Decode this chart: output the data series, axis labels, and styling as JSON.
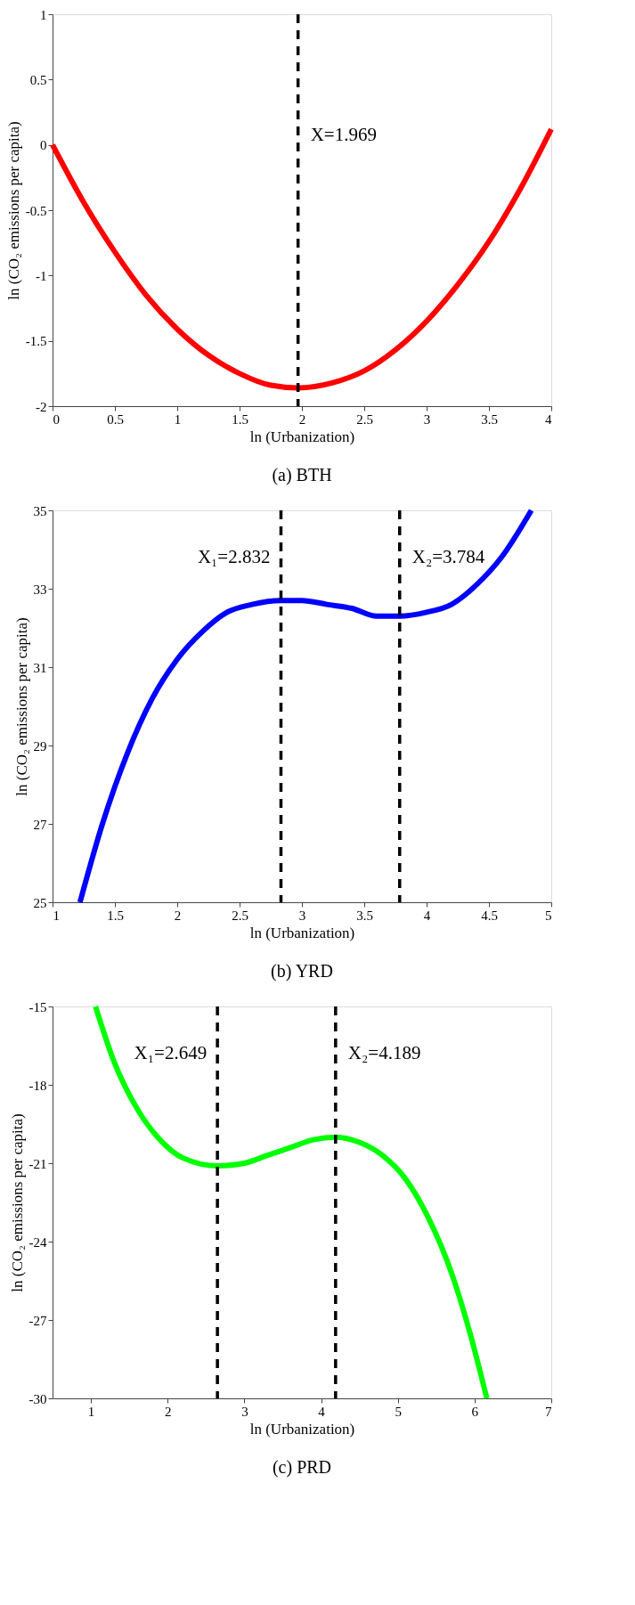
{
  "chart_data": [
    {
      "type": "line",
      "xlabel": "ln (Urbanization)",
      "ylabel": "ln (CO₂ emissions per capita)",
      "x": [
        0,
        0.25,
        0.5,
        0.75,
        1.0,
        1.25,
        1.5,
        1.75,
        1.969,
        2.25,
        2.5,
        2.75,
        3.0,
        3.25,
        3.5,
        3.75,
        4.0
      ],
      "series": [
        {
          "color": "#ff0000",
          "values": [
            0.0,
            -0.44,
            -0.82,
            -1.15,
            -1.41,
            -1.61,
            -1.75,
            -1.84,
            -1.86,
            -1.82,
            -1.73,
            -1.57,
            -1.35,
            -1.07,
            -0.74,
            -0.34,
            0.12
          ]
        }
      ],
      "xlim": [
        0,
        4
      ],
      "xticks": [
        0,
        0.5,
        1,
        1.5,
        2,
        2.5,
        3,
        3.5,
        4
      ],
      "ylim": [
        -2,
        1
      ],
      "yticks": [
        -2,
        -1.5,
        -1,
        -0.5,
        0,
        0.5,
        1
      ],
      "ref_lines": [
        {
          "axis": "x",
          "value": 1.969,
          "label": "X=1.969",
          "color": "#000000",
          "line_style": "dashed"
        }
      ],
      "annotations": [
        "(a) BTH"
      ],
      "grid": false,
      "legend": false,
      "line_style": "solid",
      "marker": "none"
    },
    {
      "type": "line",
      "xlabel": "ln (Urbanization)",
      "ylabel": "ln (CO₂ emissions per capita)",
      "x": [
        1.22,
        1.4,
        1.6,
        1.8,
        2.0,
        2.2,
        2.4,
        2.6,
        2.832,
        3.0,
        3.2,
        3.4,
        3.6,
        3.784,
        4.0,
        4.2,
        4.4,
        4.6,
        4.84
      ],
      "series": [
        {
          "color": "#0000ff",
          "values": [
            25.0,
            27.0,
            28.8,
            30.2,
            31.2,
            31.9,
            32.4,
            32.6,
            32.7,
            32.7,
            32.6,
            32.5,
            32.3,
            32.3,
            32.4,
            32.6,
            33.1,
            33.8,
            35.0
          ]
        }
      ],
      "xlim": [
        1,
        5
      ],
      "xticks": [
        1,
        1.5,
        2,
        2.5,
        3,
        3.5,
        4,
        4.5,
        5
      ],
      "ylim": [
        25,
        35
      ],
      "yticks": [
        25,
        27,
        29,
        31,
        33,
        35
      ],
      "ref_lines": [
        {
          "axis": "x",
          "value": 2.832,
          "label": "X₁=2.832",
          "color": "#000000",
          "line_style": "dashed"
        },
        {
          "axis": "x",
          "value": 3.784,
          "label": "X₂=3.784",
          "color": "#000000",
          "line_style": "dashed"
        }
      ],
      "annotations": [
        "(b) YRD"
      ],
      "grid": false,
      "legend": false,
      "line_style": "solid",
      "marker": "none"
    },
    {
      "type": "line",
      "xlabel": "ln (Urbanization)",
      "ylabel": "ln (CO₂ emissions per capita)",
      "x": [
        1.06,
        1.3,
        1.6,
        1.9,
        2.2,
        2.649,
        3.0,
        3.3,
        3.6,
        3.9,
        4.189,
        4.5,
        4.8,
        5.1,
        5.4,
        5.7,
        5.95,
        6.16
      ],
      "series": [
        {
          "color": "#00ff00",
          "values": [
            -15.0,
            -17.1,
            -18.9,
            -20.1,
            -20.8,
            -21.1,
            -21.0,
            -20.7,
            -20.4,
            -20.1,
            -20.0,
            -20.2,
            -20.7,
            -21.6,
            -23.1,
            -25.2,
            -27.6,
            -30.0
          ]
        }
      ],
      "xlim": [
        0.5,
        7
      ],
      "xticks": [
        1,
        2,
        3,
        4,
        5,
        6,
        7
      ],
      "ylim": [
        -30,
        -15
      ],
      "yticks": [
        -30,
        -27,
        -24,
        -21,
        -18,
        -15
      ],
      "ref_lines": [
        {
          "axis": "x",
          "value": 2.649,
          "label": "X₁=2.649",
          "color": "#000000",
          "line_style": "dashed"
        },
        {
          "axis": "x",
          "value": 4.189,
          "label": "X₂=4.189",
          "color": "#000000",
          "line_style": "dashed"
        }
      ],
      "annotations": [
        "(c) PRD"
      ],
      "grid": false,
      "legend": false,
      "line_style": "solid",
      "marker": "none"
    }
  ]
}
